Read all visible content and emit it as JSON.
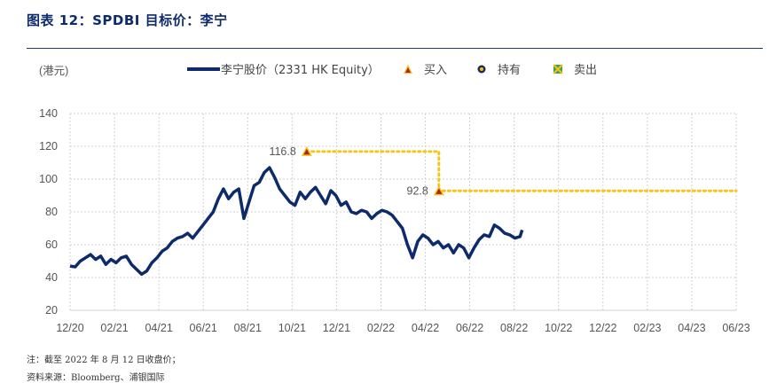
{
  "header": {
    "title": "图表 12：SPDBI 目标价：李宁"
  },
  "footer": {
    "note": "注：截至 2022 年 8 月 12 日收盘价；",
    "source": "资料来源：Bloomberg、浦银国际"
  },
  "colors": {
    "price_line": "#0d2b6b",
    "target_line": "#f5c518",
    "buy_marker": "#f0c419",
    "buy_marker_inner": "#b3221b",
    "hold_marker": "#1f2a55",
    "sell_marker": "#4aa04a",
    "grid": "#d0d0d0",
    "title": "#0d2b6b"
  },
  "chart_data": {
    "type": "line",
    "unit_label": "(港元)",
    "ylim": [
      20,
      140
    ],
    "yticks": [
      20,
      40,
      60,
      80,
      100,
      120,
      140
    ],
    "xlim": [
      "2020-12-01",
      "2023-06-01"
    ],
    "xticks": [
      "12/20",
      "02/21",
      "04/21",
      "06/21",
      "08/21",
      "10/21",
      "12/21",
      "02/22",
      "04/22",
      "06/22",
      "08/22",
      "10/22",
      "12/22",
      "02/23",
      "04/23",
      "06/23"
    ],
    "grid": "vertical and horizontal dotted",
    "legend": {
      "position": "top",
      "entries": [
        {
          "key": "price",
          "label": "李宁股价（2331 HK Equity）",
          "marker": "line"
        },
        {
          "key": "buy",
          "label": "买入",
          "marker": "triangle"
        },
        {
          "key": "hold",
          "label": "持有",
          "marker": "circle"
        },
        {
          "key": "sell",
          "label": "卖出",
          "marker": "x-square"
        }
      ]
    },
    "series": [
      {
        "name": "李宁股价（2331 HK Equity）",
        "points": [
          [
            "2020-12-01",
            47
          ],
          [
            "2020-12-08",
            46.5
          ],
          [
            "2020-12-15",
            50
          ],
          [
            "2020-12-22",
            52
          ],
          [
            "2020-12-29",
            54
          ],
          [
            "2021-01-05",
            51
          ],
          [
            "2021-01-12",
            53
          ],
          [
            "2021-01-19",
            48
          ],
          [
            "2021-01-26",
            51
          ],
          [
            "2021-02-02",
            49
          ],
          [
            "2021-02-09",
            52
          ],
          [
            "2021-02-16",
            53
          ],
          [
            "2021-02-23",
            48
          ],
          [
            "2021-03-02",
            45
          ],
          [
            "2021-03-09",
            42
          ],
          [
            "2021-03-16",
            44
          ],
          [
            "2021-03-23",
            49
          ],
          [
            "2021-03-30",
            52
          ],
          [
            "2021-04-06",
            56
          ],
          [
            "2021-04-13",
            58
          ],
          [
            "2021-04-20",
            62
          ],
          [
            "2021-04-27",
            64
          ],
          [
            "2021-05-04",
            65
          ],
          [
            "2021-05-11",
            67
          ],
          [
            "2021-05-18",
            64
          ],
          [
            "2021-05-25",
            68
          ],
          [
            "2021-06-01",
            72
          ],
          [
            "2021-06-08",
            76
          ],
          [
            "2021-06-15",
            80
          ],
          [
            "2021-06-22",
            88
          ],
          [
            "2021-06-29",
            94
          ],
          [
            "2021-07-06",
            88
          ],
          [
            "2021-07-13",
            92
          ],
          [
            "2021-07-20",
            94
          ],
          [
            "2021-07-27",
            76
          ],
          [
            "2021-08-03",
            86
          ],
          [
            "2021-08-10",
            96
          ],
          [
            "2021-08-17",
            98
          ],
          [
            "2021-08-24",
            104
          ],
          [
            "2021-08-31",
            107
          ],
          [
            "2021-09-07",
            101
          ],
          [
            "2021-09-14",
            94
          ],
          [
            "2021-09-21",
            90
          ],
          [
            "2021-09-28",
            86
          ],
          [
            "2021-10-05",
            84
          ],
          [
            "2021-10-12",
            92
          ],
          [
            "2021-10-19",
            88
          ],
          [
            "2021-10-26",
            92
          ],
          [
            "2021-11-02",
            95
          ],
          [
            "2021-11-09",
            90
          ],
          [
            "2021-11-16",
            85
          ],
          [
            "2021-11-23",
            93
          ],
          [
            "2021-11-30",
            90
          ],
          [
            "2021-12-07",
            84
          ],
          [
            "2021-12-14",
            86
          ],
          [
            "2021-12-21",
            80
          ],
          [
            "2021-12-28",
            79
          ],
          [
            "2022-01-04",
            81
          ],
          [
            "2022-01-11",
            80
          ],
          [
            "2022-01-18",
            76
          ],
          [
            "2022-01-25",
            79
          ],
          [
            "2022-02-01",
            81
          ],
          [
            "2022-02-08",
            80
          ],
          [
            "2022-02-15",
            78
          ],
          [
            "2022-02-22",
            74
          ],
          [
            "2022-03-01",
            70
          ],
          [
            "2022-03-08",
            60
          ],
          [
            "2022-03-15",
            52
          ],
          [
            "2022-03-22",
            62
          ],
          [
            "2022-03-29",
            66
          ],
          [
            "2022-04-05",
            64
          ],
          [
            "2022-04-12",
            60
          ],
          [
            "2022-04-19",
            62
          ],
          [
            "2022-04-26",
            58
          ],
          [
            "2022-05-03",
            60
          ],
          [
            "2022-05-10",
            55
          ],
          [
            "2022-05-17",
            60
          ],
          [
            "2022-05-24",
            58
          ],
          [
            "2022-05-31",
            52
          ],
          [
            "2022-06-07",
            58
          ],
          [
            "2022-06-14",
            63
          ],
          [
            "2022-06-21",
            66
          ],
          [
            "2022-06-28",
            65
          ],
          [
            "2022-07-05",
            72
          ],
          [
            "2022-07-12",
            70
          ],
          [
            "2022-07-19",
            67
          ],
          [
            "2022-07-26",
            66
          ],
          [
            "2022-08-02",
            64
          ],
          [
            "2022-08-09",
            65
          ],
          [
            "2022-08-12",
            69
          ]
        ]
      }
    ],
    "ratings": [
      {
        "type": "buy",
        "date": "2021-10-21",
        "target": 116.8,
        "label": "116.8"
      },
      {
        "type": "buy",
        "date": "2022-04-20",
        "target": 92.8,
        "label": "92.8"
      }
    ],
    "target_price_line": [
      [
        "2021-10-21",
        116.8
      ],
      [
        "2022-04-20",
        116.8
      ],
      [
        "2022-04-20",
        92.8
      ],
      [
        "2023-06-01",
        92.8
      ]
    ]
  }
}
